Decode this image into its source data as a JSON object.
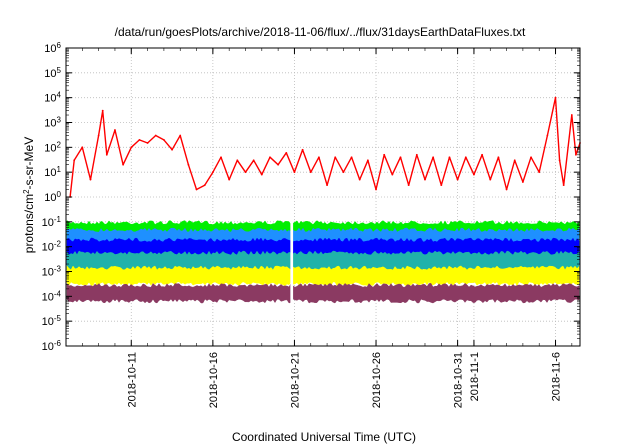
{
  "chart_data": {
    "type": "line",
    "title": "/data/run/goesPlots/archive/2018-11-06/flux/../flux/31daysEarthDataFluxes.txt",
    "xlabel": "Coordinated Universal Time (UTC)",
    "ylabel_parts": [
      "protons/cm",
      "2",
      "-s-sr-MeV"
    ],
    "y_scale": "log",
    "ylim": [
      1e-06,
      1000000.0
    ],
    "xlim": [
      "2018-10-07T00:00",
      "2018-11-07T12:00"
    ],
    "grid": true,
    "y_ticks": [
      {
        "base": "10",
        "exp": "-6"
      },
      {
        "base": "10",
        "exp": "-5"
      },
      {
        "base": "10",
        "exp": "-4"
      },
      {
        "base": "10",
        "exp": "-3"
      },
      {
        "base": "10",
        "exp": "-2"
      },
      {
        "base": "10",
        "exp": "-1"
      },
      {
        "base": "10",
        "exp": "0"
      },
      {
        "base": "10",
        "exp": "1"
      },
      {
        "base": "10",
        "exp": "2"
      },
      {
        "base": "10",
        "exp": "3"
      },
      {
        "base": "10",
        "exp": "4"
      },
      {
        "base": "10",
        "exp": "5"
      },
      {
        "base": "10",
        "exp": "6"
      }
    ],
    "x_ticks": [
      {
        "date": "2018-10-11",
        "label": "2018-10-11"
      },
      {
        "date": "2018-10-16",
        "label": "2018-10-16"
      },
      {
        "date": "2018-10-21",
        "label": "2018-10-21"
      },
      {
        "date": "2018-10-26",
        "label": "2018-10-26"
      },
      {
        "date": "2018-10-31",
        "label": "2018-10-31"
      },
      {
        "date": "2018-11-01",
        "label": "2018-11-1"
      },
      {
        "date": "2018-11-06",
        "label": "2018-11-6"
      }
    ],
    "series": [
      {
        "color": "#ff0000",
        "points": [
          [
            "2018-10-07T06:00",
            1
          ],
          [
            "2018-10-07T12:00",
            30
          ],
          [
            "2018-10-08T00:00",
            100
          ],
          [
            "2018-10-08T12:00",
            5
          ],
          [
            "2018-10-09T00:00",
            300
          ],
          [
            "2018-10-09T06:00",
            3000
          ],
          [
            "2018-10-09T12:00",
            50
          ],
          [
            "2018-10-10T00:00",
            500
          ],
          [
            "2018-10-10T12:00",
            20
          ],
          [
            "2018-10-11T00:00",
            100
          ],
          [
            "2018-10-11T12:00",
            200
          ],
          [
            "2018-10-12T00:00",
            150
          ],
          [
            "2018-10-12T12:00",
            300
          ],
          [
            "2018-10-13T00:00",
            200
          ],
          [
            "2018-10-13T12:00",
            80
          ],
          [
            "2018-10-14T00:00",
            300
          ],
          [
            "2018-10-14T12:00",
            20
          ],
          [
            "2018-10-15T00:00",
            2
          ],
          [
            "2018-10-15T12:00",
            3
          ],
          [
            "2018-10-16T00:00",
            10
          ],
          [
            "2018-10-16T12:00",
            40
          ],
          [
            "2018-10-17T00:00",
            5
          ],
          [
            "2018-10-17T12:00",
            30
          ],
          [
            "2018-10-18T00:00",
            10
          ],
          [
            "2018-10-18T12:00",
            30
          ],
          [
            "2018-10-19T00:00",
            8
          ],
          [
            "2018-10-19T12:00",
            40
          ],
          [
            "2018-10-20T00:00",
            20
          ],
          [
            "2018-10-20T12:00",
            60
          ],
          [
            "2018-10-21T00:00",
            10
          ],
          [
            "2018-10-21T12:00",
            80
          ],
          [
            "2018-10-22T00:00",
            10
          ],
          [
            "2018-10-22T12:00",
            40
          ],
          [
            "2018-10-23T00:00",
            3
          ],
          [
            "2018-10-23T12:00",
            40
          ],
          [
            "2018-10-24T00:00",
            10
          ],
          [
            "2018-10-24T12:00",
            40
          ],
          [
            "2018-10-25T00:00",
            5
          ],
          [
            "2018-10-25T12:00",
            30
          ],
          [
            "2018-10-26T00:00",
            2
          ],
          [
            "2018-10-26T12:00",
            50
          ],
          [
            "2018-10-27T00:00",
            8
          ],
          [
            "2018-10-27T12:00",
            40
          ],
          [
            "2018-10-28T00:00",
            3
          ],
          [
            "2018-10-28T12:00",
            50
          ],
          [
            "2018-10-29T00:00",
            5
          ],
          [
            "2018-10-29T12:00",
            40
          ],
          [
            "2018-10-30T00:00",
            3
          ],
          [
            "2018-10-30T12:00",
            40
          ],
          [
            "2018-10-31T00:00",
            5
          ],
          [
            "2018-10-31T12:00",
            40
          ],
          [
            "2018-11-01T00:00",
            8
          ],
          [
            "2018-11-01T12:00",
            50
          ],
          [
            "2018-11-02T00:00",
            5
          ],
          [
            "2018-11-02T12:00",
            40
          ],
          [
            "2018-11-03T00:00",
            2
          ],
          [
            "2018-11-03T12:00",
            30
          ],
          [
            "2018-11-04T00:00",
            4
          ],
          [
            "2018-11-04T12:00",
            40
          ],
          [
            "2018-11-05T00:00",
            10
          ],
          [
            "2018-11-05T12:00",
            300
          ],
          [
            "2018-11-06T00:00",
            10000
          ],
          [
            "2018-11-06T06:00",
            30
          ],
          [
            "2018-11-06T12:00",
            3
          ],
          [
            "2018-11-07T00:00",
            2000
          ],
          [
            "2018-11-07T06:00",
            50
          ],
          [
            "2018-11-07T12:00",
            150
          ]
        ]
      },
      {
        "color": "#00ee00",
        "band": [
          0.02,
          0.1
        ]
      },
      {
        "color": "#1e90ff",
        "band": [
          0.003,
          0.05
        ]
      },
      {
        "color": "#0000ff",
        "band": [
          0.002,
          0.02
        ]
      },
      {
        "color": "#20b2aa",
        "band": [
          0.001,
          0.006
        ]
      },
      {
        "color": "#ffff00",
        "band": [
          0.0003,
          0.0015
        ]
      },
      {
        "color": "#8b3a62",
        "band": [
          6e-05,
          0.0003
        ]
      }
    ],
    "data_gap": [
      "2018-10-20T18:00",
      "2018-10-20T22:00"
    ]
  }
}
